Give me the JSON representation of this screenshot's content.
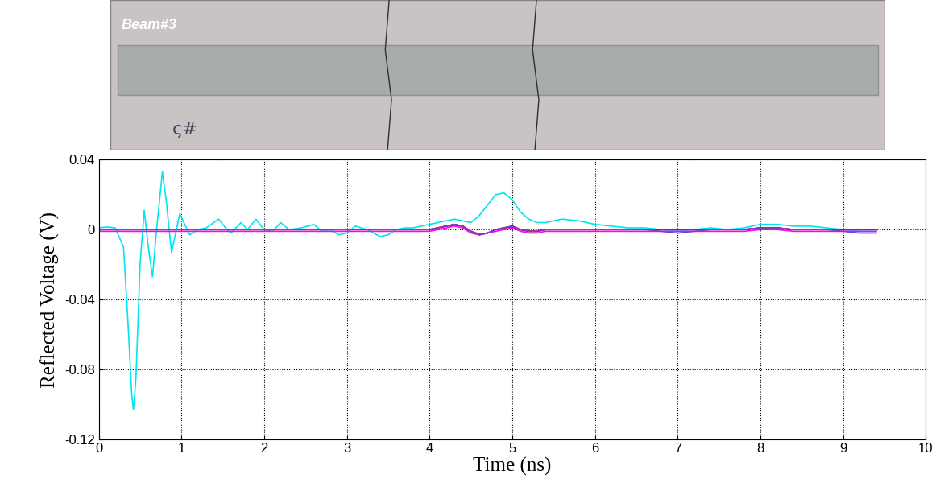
{
  "photo": {
    "labels": [
      "Beam#3",
      "ς#"
    ]
  },
  "chart_data": {
    "type": "line",
    "x_label": "Time (ns)",
    "y_label": "Reflected Voltage (V)",
    "x": [
      0,
      0.1,
      0.2,
      0.3,
      0.35,
      0.4,
      0.42,
      0.45,
      0.5,
      0.55,
      0.6,
      0.65,
      0.7,
      0.77,
      0.82,
      0.88,
      0.93,
      0.98,
      1.05,
      1.1,
      1.2,
      1.3,
      1.45,
      1.55,
      1.6,
      1.72,
      1.8,
      1.9,
      2.0,
      2.1,
      2.2,
      2.3,
      2.45,
      2.6,
      2.7,
      2.8,
      2.9,
      3.0,
      3.1,
      3.25,
      3.4,
      3.5,
      3.6,
      3.7,
      3.8,
      3.9,
      4.0,
      4.1,
      4.2,
      4.3,
      4.4,
      4.5,
      4.6,
      4.7,
      4.8,
      4.9,
      5.0,
      5.1,
      5.2,
      5.3,
      5.4,
      5.6,
      5.8,
      6.0,
      6.2,
      6.4,
      6.6,
      6.8,
      7.0,
      7.2,
      7.4,
      7.6,
      7.8,
      8.0,
      8.2,
      8.4,
      8.6,
      8.8,
      9.0,
      9.2,
      9.4
    ],
    "series": [
      {
        "color": "#00e5ee",
        "values": [
          0.001,
          0.0015,
          0.001,
          -0.01,
          -0.05,
          -0.095,
          -0.103,
          -0.085,
          -0.02,
          0.011,
          -0.01,
          -0.027,
          0.0,
          0.033,
          0.015,
          -0.013,
          -0.002,
          0.009,
          0.002,
          -0.003,
          0.0,
          0.001,
          0.006,
          0.0,
          -0.002,
          0.004,
          0.0,
          0.006,
          0.0,
          -0.001,
          0.004,
          0.0,
          0.001,
          0.003,
          -0.001,
          0.0,
          -0.003,
          -0.002,
          0.002,
          0.0,
          -0.004,
          -0.003,
          0.0,
          0.001,
          0.001,
          0.002,
          0.003,
          0.004,
          0.005,
          0.006,
          0.005,
          0.004,
          0.008,
          0.014,
          0.02,
          0.021,
          0.017,
          0.01,
          0.006,
          0.004,
          0.004,
          0.006,
          0.005,
          0.003,
          0.002,
          0.001,
          0.001,
          0.0,
          -0.001,
          0.0,
          0.001,
          0.0,
          0.001,
          0.003,
          0.003,
          0.002,
          0.002,
          0.001,
          0.0,
          -0.001,
          -0.001
        ]
      },
      {
        "color": "black",
        "values": [
          0,
          0,
          0,
          0,
          0,
          0,
          0,
          0,
          0,
          0,
          0,
          0,
          0,
          0,
          0,
          0,
          0,
          0,
          0,
          0,
          0,
          0,
          0,
          0,
          0,
          0,
          0,
          0,
          0,
          0,
          0,
          0,
          0,
          0,
          0,
          0,
          0,
          0,
          0,
          0,
          0,
          0,
          0,
          0,
          0,
          0,
          0,
          0.001,
          0.002,
          0.003,
          0.002,
          -0.001,
          -0.003,
          -0.002,
          0.0,
          0.001,
          0.002,
          0.0,
          -0.001,
          -0.001,
          0,
          0,
          0,
          0,
          0,
          0,
          0,
          0,
          0,
          0,
          0,
          0,
          0,
          0.001,
          0.001,
          0,
          0,
          0,
          0,
          0,
          0
        ]
      },
      {
        "color": "red",
        "values": [
          0,
          0,
          0,
          0,
          0,
          0,
          0,
          0,
          0,
          0,
          0,
          0,
          0,
          0,
          0,
          0,
          0,
          0,
          0,
          0,
          0,
          0,
          0,
          0,
          0,
          0,
          0,
          0,
          0,
          0,
          0,
          0,
          0,
          0,
          0,
          0,
          0,
          0,
          0,
          0,
          0,
          0,
          0,
          0,
          0,
          0,
          0,
          0.001,
          0.002,
          0.0025,
          0.002,
          -0.001,
          -0.0025,
          -0.002,
          0.0,
          0.001,
          0.0015,
          0.0,
          -0.001,
          -0.001,
          0,
          0,
          0,
          0,
          0,
          0,
          0,
          0,
          0,
          0,
          0,
          0,
          0,
          0.001,
          0.001,
          0,
          0,
          0,
          0,
          0,
          0
        ]
      },
      {
        "color": "magenta",
        "values": [
          -0.001,
          -0.001,
          -0.001,
          -0.001,
          -0.001,
          -0.001,
          -0.001,
          -0.001,
          -0.001,
          -0.001,
          -0.001,
          -0.001,
          -0.001,
          -0.001,
          -0.001,
          -0.001,
          -0.001,
          -0.001,
          -0.001,
          -0.001,
          -0.001,
          -0.001,
          -0.001,
          -0.001,
          -0.001,
          -0.001,
          -0.001,
          -0.001,
          -0.001,
          -0.001,
          -0.001,
          -0.001,
          -0.001,
          -0.001,
          -0.001,
          -0.001,
          -0.001,
          -0.001,
          -0.001,
          -0.001,
          -0.001,
          -0.001,
          -0.001,
          -0.001,
          -0.001,
          -0.001,
          -0.001,
          0.0,
          0.001,
          0.002,
          0.001,
          -0.002,
          -0.003,
          -0.002,
          -0.001,
          0.0,
          0.001,
          -0.001,
          -0.002,
          -0.002,
          -0.001,
          -0.001,
          -0.001,
          -0.001,
          -0.001,
          -0.001,
          -0.001,
          -0.001,
          -0.001,
          -0.001,
          -0.001,
          -0.001,
          -0.001,
          0.0,
          0.0,
          -0.001,
          -0.001,
          -0.001,
          -0.001,
          -0.001,
          -0.001
        ]
      },
      {
        "color": "#7b3fd0",
        "values": [
          0,
          0,
          0,
          0,
          0,
          0,
          0,
          0,
          0,
          0,
          0,
          0,
          0,
          0,
          0,
          0,
          0,
          0,
          0,
          0,
          0,
          0,
          0,
          0,
          0,
          0,
          0,
          0,
          0,
          0,
          0,
          0,
          0,
          0,
          0,
          0,
          0,
          0,
          0,
          0,
          0,
          0,
          0,
          0,
          0,
          0,
          0,
          0.001,
          0.002,
          0.003,
          0.002,
          -0.001,
          -0.003,
          -0.002,
          0.0,
          0.001,
          0.002,
          0.0,
          -0.001,
          -0.001,
          0,
          0,
          0,
          0,
          0,
          0,
          0,
          -0.001,
          -0.002,
          -0.001,
          0,
          0,
          0,
          0.001,
          0.001,
          0,
          0,
          0,
          -0.001,
          -0.002,
          -0.002
        ]
      }
    ],
    "xlim": [
      0,
      10
    ],
    "xticks": [
      0,
      1,
      2,
      3,
      4,
      5,
      6,
      7,
      8,
      9,
      10
    ],
    "ylim": [
      -0.12,
      0.04
    ],
    "yticks": [
      -0.12,
      -0.08,
      -0.04,
      0,
      0.04
    ],
    "grid": true
  }
}
